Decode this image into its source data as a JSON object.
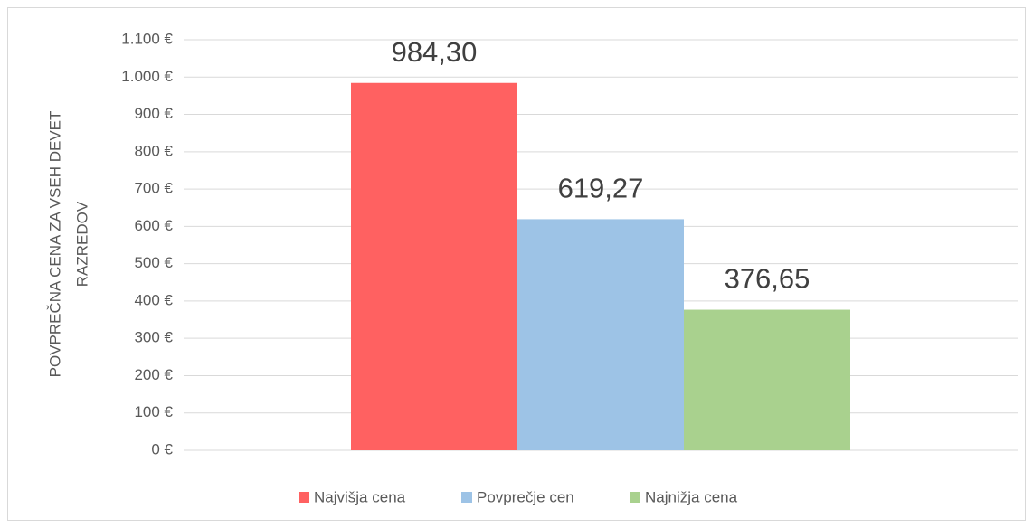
{
  "chart_data": {
    "type": "bar",
    "ylabel": [
      "POVPREČNA CENA ZA VSEH DEVET",
      "RAZREDOV"
    ],
    "categories": [
      null
    ],
    "series": [
      {
        "name": "Najvišja cena",
        "color": "#ff6161",
        "values": [
          984.3
        ],
        "value_labels": [
          "984,30"
        ]
      },
      {
        "name": "Povprečje cen",
        "color": "#9dc3e6",
        "values": [
          619.27
        ],
        "value_labels": [
          "619,27"
        ]
      },
      {
        "name": "Najnižja cena",
        "color": "#a9d18e",
        "values": [
          376.65
        ],
        "value_labels": [
          "376,65"
        ]
      }
    ],
    "ylim": [
      0,
      1100
    ],
    "yticks": [
      {
        "value": 0,
        "label": "0 €"
      },
      {
        "value": 100,
        "label": "100 €"
      },
      {
        "value": 200,
        "label": "200 €"
      },
      {
        "value": 300,
        "label": "300 €"
      },
      {
        "value": 400,
        "label": "400 €"
      },
      {
        "value": 500,
        "label": "500 €"
      },
      {
        "value": 600,
        "label": "600 €"
      },
      {
        "value": 700,
        "label": "700 €"
      },
      {
        "value": 800,
        "label": "800 €"
      },
      {
        "value": 900,
        "label": "900 €"
      },
      {
        "value": 1000,
        "label": "1.000 €"
      },
      {
        "value": 1100,
        "label": "1.100 €"
      }
    ],
    "grid": true,
    "legend": "bottom"
  }
}
